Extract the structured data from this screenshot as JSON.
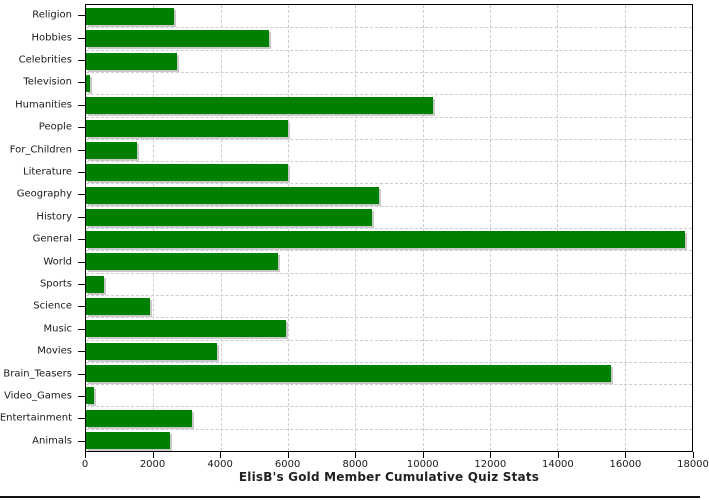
{
  "chart_data": {
    "type": "bar",
    "orientation": "horizontal",
    "title": "ElisB's Gold Member Cumulative Quiz Stats",
    "categories": [
      "Religion",
      "Hobbies",
      "Celebrities",
      "Television",
      "Humanities",
      "People",
      "For_Children",
      "Literature",
      "Geography",
      "History",
      "General",
      "World",
      "Sports",
      "Science",
      "Music",
      "Movies",
      "Brain_Teasers",
      "Video_Games",
      "Entertainment",
      "Animals"
    ],
    "values": [
      2600,
      5450,
      2700,
      120,
      10300,
      6000,
      1500,
      6000,
      8700,
      8500,
      17800,
      5700,
      530,
      1900,
      5950,
      3900,
      15600,
      250,
      3150,
      2500
    ],
    "xlabel": "",
    "ylabel": "",
    "xlim": [
      0,
      18000
    ],
    "x_tick_step": 2000,
    "x_tick_labels": [
      "0",
      "2000",
      "4000",
      "6000",
      "8000",
      "10000",
      "12000",
      "14000",
      "16000",
      "18000"
    ],
    "grid": "dashed",
    "legend": "none",
    "colors": {
      "bar": "#008000",
      "bar_shadow": "#c9c9c9",
      "gridline": "#cccccc",
      "axis": "#000000",
      "text": "#1a1a1a"
    }
  }
}
